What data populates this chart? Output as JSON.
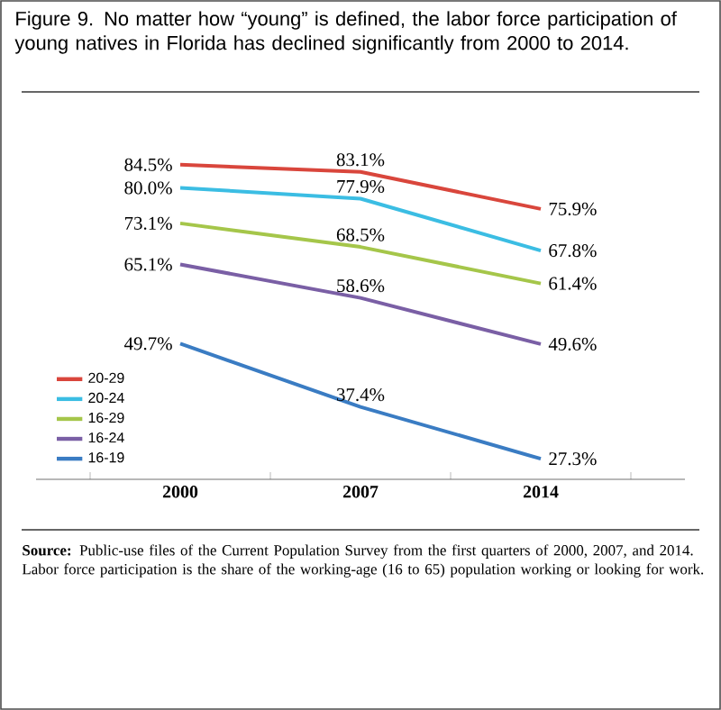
{
  "chart_data": {
    "type": "line",
    "title": "Figure 9. No matter how “young” is defined, the labor force participation of young natives in Florida has declined significantly from 2000 to 2014.",
    "categories": [
      "2000",
      "2007",
      "2014"
    ],
    "series": [
      {
        "name": "20-29",
        "color": "#d9463c",
        "values": [
          84.5,
          83.1,
          75.9
        ],
        "value_labels": [
          "84.5%",
          "83.1%",
          "75.9%"
        ]
      },
      {
        "name": "20-24",
        "color": "#3bbde3",
        "values": [
          80.0,
          77.9,
          67.8
        ],
        "value_labels": [
          "80.0%",
          "77.9%",
          "67.8%"
        ]
      },
      {
        "name": "16-29",
        "color": "#a5c64a",
        "values": [
          73.1,
          68.5,
          61.4
        ],
        "value_labels": [
          "73.1%",
          "68.5%",
          "61.4%"
        ]
      },
      {
        "name": "16-24",
        "color": "#7a5fa5",
        "values": [
          65.1,
          58.6,
          49.6
        ],
        "value_labels": [
          "65.1%",
          "58.6%",
          "49.6%"
        ]
      },
      {
        "name": "16-19",
        "color": "#3a7cc3",
        "values": [
          49.7,
          37.4,
          27.3
        ],
        "value_labels": [
          "49.7%",
          "37.4%",
          "27.3%"
        ]
      }
    ],
    "legend": "bottom left",
    "annotations": [
      "**Source:** Public-use files of the Current Population Survey from the first quarters of 2000, 2007, and 2014.",
      "Labor force participation is the share of the working-age (16 to 65) population working or looking for work."
    ]
  }
}
